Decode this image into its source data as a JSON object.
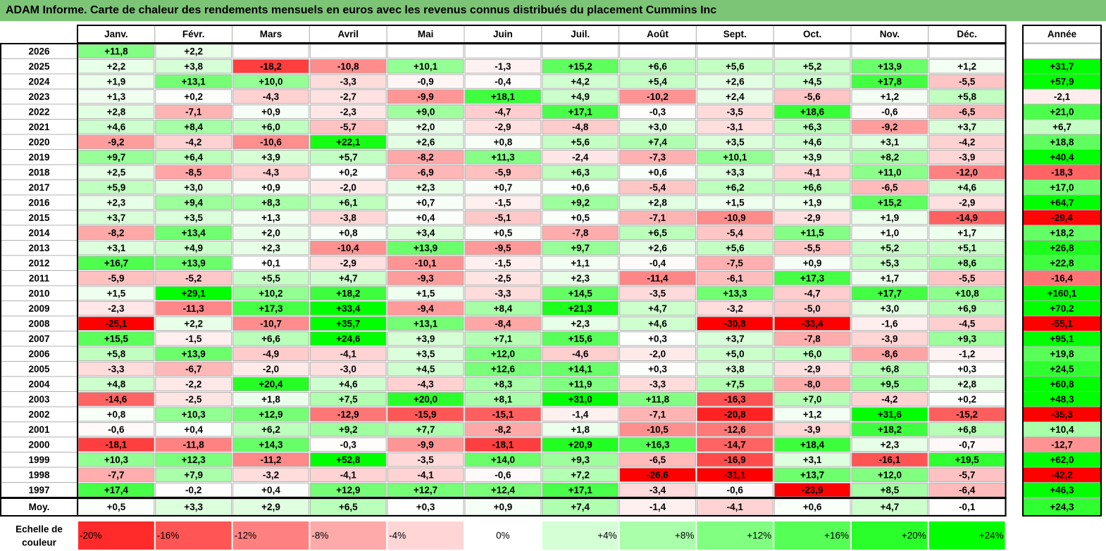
{
  "title": "ADAM Informe. Carte de chaleur des rendements mensuels en euros avec les revenus connus distribués du placement Cummins Inc",
  "chart_data": {
    "type": "heatmap",
    "title": "ADAM Informe. Carte de chaleur des rendements mensuels en euros avec les revenus connus distribués du placement Cummins Inc",
    "columns": [
      "Janv.",
      "Févr.",
      "Mars",
      "Avril",
      "Mai",
      "Juin",
      "Juil.",
      "Août",
      "Sept.",
      "Oct.",
      "Nov.",
      "Déc."
    ],
    "year_column_label": "Année",
    "rows": [
      {
        "label": "2026",
        "values": [
          "+11,8",
          "+2,2",
          null,
          null,
          null,
          null,
          null,
          null,
          null,
          null,
          null,
          null
        ],
        "year": null
      },
      {
        "label": "2025",
        "values": [
          "+2,2",
          "+3,8",
          "-18,2",
          "-10,8",
          "+10,1",
          "-1,3",
          "+15,2",
          "+6,6",
          "+5,6",
          "+5,2",
          "+13,9",
          "+1,2"
        ],
        "year": "+31,7"
      },
      {
        "label": "2024",
        "values": [
          "+1,9",
          "+13,1",
          "+10,0",
          "-3,3",
          "-0,9",
          "-0,4",
          "+4,2",
          "+5,4",
          "+2,6",
          "+4,5",
          "+17,8",
          "-5,5"
        ],
        "year": "+57,9"
      },
      {
        "label": "2023",
        "values": [
          "+1,3",
          "+0,2",
          "-4,3",
          "-2,7",
          "-9,9",
          "+18,1",
          "+4,9",
          "-10,2",
          "+2,4",
          "-5,6",
          "+1,2",
          "+5,8"
        ],
        "year": "-2,1"
      },
      {
        "label": "2022",
        "values": [
          "+2,8",
          "-7,1",
          "+0,9",
          "-2,3",
          "+9,0",
          "-4,7",
          "+17,1",
          "-0,3",
          "-3,5",
          "+18,6",
          "-0,6",
          "-6,5"
        ],
        "year": "+21,0"
      },
      {
        "label": "2021",
        "values": [
          "+4,6",
          "+8,4",
          "+6,0",
          "-5,7",
          "+2,0",
          "-2,9",
          "-4,8",
          "+3,0",
          "-3,1",
          "+6,3",
          "-9,2",
          "+3,7"
        ],
        "year": "+6,7"
      },
      {
        "label": "2020",
        "values": [
          "-9,2",
          "-4,2",
          "-10,6",
          "+22,1",
          "+2,6",
          "+0,8",
          "+5,6",
          "+7,4",
          "+3,5",
          "+4,6",
          "+3,1",
          "-4,2"
        ],
        "year": "+18,8"
      },
      {
        "label": "2019",
        "values": [
          "+9,7",
          "+6,4",
          "+3,9",
          "+5,7",
          "-8,2",
          "+11,3",
          "-2,4",
          "-7,3",
          "+10,1",
          "+3,9",
          "+8,2",
          "-3,9"
        ],
        "year": "+40,4"
      },
      {
        "label": "2018",
        "values": [
          "+2,5",
          "-8,5",
          "-4,3",
          "+0,2",
          "-6,9",
          "-5,9",
          "+6,3",
          "+0,6",
          "+3,3",
          "-4,1",
          "+11,0",
          "-12,0"
        ],
        "year": "-18,3"
      },
      {
        "label": "2017",
        "values": [
          "+5,9",
          "+3,0",
          "+0,9",
          "-2,0",
          "+2,3",
          "+0,7",
          "+0,6",
          "-5,4",
          "+6,2",
          "+6,6",
          "-6,5",
          "+4,6"
        ],
        "year": "+17,0"
      },
      {
        "label": "2016",
        "values": [
          "+2,3",
          "+9,4",
          "+8,3",
          "+6,1",
          "+0,7",
          "-1,5",
          "+9,2",
          "+2,8",
          "+1,5",
          "+1,9",
          "+15,2",
          "-2,9"
        ],
        "year": "+64,7"
      },
      {
        "label": "2015",
        "values": [
          "+3,7",
          "+3,5",
          "+1,3",
          "-3,8",
          "+0,4",
          "-5,1",
          "+0,5",
          "-7,1",
          "-10,9",
          "-2,9",
          "+1,9",
          "-14,9"
        ],
        "year": "-29,4"
      },
      {
        "label": "2014",
        "values": [
          "-8,2",
          "+13,4",
          "+2,0",
          "+0,8",
          "+3,4",
          "+0,5",
          "-7,8",
          "+6,5",
          "-5,4",
          "+11,5",
          "+1,0",
          "+1,7"
        ],
        "year": "+18,2"
      },
      {
        "label": "2013",
        "values": [
          "+3,1",
          "+4,9",
          "+2,3",
          "-10,4",
          "+13,9",
          "-9,5",
          "+9,7",
          "+2,6",
          "+5,6",
          "-5,5",
          "+5,2",
          "+5,1"
        ],
        "year": "+26,8"
      },
      {
        "label": "2012",
        "values": [
          "+16,7",
          "+13,9",
          "+0,1",
          "-2,9",
          "-10,1",
          "-1,5",
          "+1,1",
          "-0,4",
          "-7,5",
          "+0,9",
          "+5,3",
          "+8,6"
        ],
        "year": "+22,8"
      },
      {
        "label": "2011",
        "values": [
          "-5,9",
          "-5,2",
          "+5,5",
          "+4,7",
          "-9,3",
          "-2,5",
          "+2,3",
          "-11,4",
          "-6,1",
          "+17,3",
          "+1,7",
          "-5,5"
        ],
        "year": "-16,4"
      },
      {
        "label": "2010",
        "values": [
          "+1,5",
          "+29,1",
          "+10,2",
          "+18,2",
          "+1,5",
          "-3,3",
          "+14,5",
          "-3,5",
          "+13,3",
          "-4,7",
          "+17,7",
          "+10,8"
        ],
        "year": "+160,1"
      },
      {
        "label": "2009",
        "values": [
          "-2,3",
          "-11,3",
          "+17,3",
          "+33,4",
          "-9,4",
          "+8,4",
          "+21,3",
          "+4,7",
          "-3,2",
          "-5,0",
          "+3,0",
          "+6,9"
        ],
        "year": "+70,2"
      },
      {
        "label": "2008",
        "values": [
          "-25,1",
          "+2,2",
          "-10,7",
          "+35,7",
          "+13,1",
          "-8,4",
          "+2,3",
          "+4,6",
          "-30,8",
          "-33,4",
          "-1,6",
          "-4,5"
        ],
        "year": "-55,1"
      },
      {
        "label": "2007",
        "values": [
          "+15,5",
          "-1,5",
          "+6,6",
          "+24,6",
          "+3,9",
          "+7,1",
          "+15,6",
          "+0,3",
          "+3,7",
          "-7,8",
          "-3,9",
          "+9,3"
        ],
        "year": "+95,1"
      },
      {
        "label": "2006",
        "values": [
          "+5,8",
          "+13,9",
          "-4,9",
          "-4,1",
          "+3,5",
          "+12,0",
          "-4,6",
          "-2,0",
          "+5,0",
          "+6,0",
          "-8,6",
          "-1,2"
        ],
        "year": "+19,8"
      },
      {
        "label": "2005",
        "values": [
          "-3,3",
          "-6,7",
          "-2,0",
          "-3,0",
          "+4,5",
          "+12,6",
          "+14,1",
          "+0,3",
          "+3,8",
          "-2,9",
          "+6,8",
          "+0,3"
        ],
        "year": "+24,5"
      },
      {
        "label": "2004",
        "values": [
          "+4,8",
          "-2,2",
          "+20,4",
          "+4,6",
          "-4,3",
          "+8,3",
          "+11,9",
          "-3,3",
          "+7,5",
          "-8,0",
          "+9,5",
          "+2,8"
        ],
        "year": "+60,8"
      },
      {
        "label": "2003",
        "values": [
          "-14,6",
          "-2,5",
          "+1,8",
          "+7,5",
          "+20,0",
          "+8,1",
          "+31,0",
          "+11,8",
          "-16,3",
          "+7,0",
          "-4,2",
          "+0,2"
        ],
        "year": "+48,3"
      },
      {
        "label": "2002",
        "values": [
          "+0,8",
          "+10,3",
          "+12,9",
          "-12,9",
          "-15,9",
          "-15,1",
          "-1,4",
          "-7,1",
          "-20,8",
          "+1,2",
          "+31,6",
          "-15,2"
        ],
        "year": "-35,3"
      },
      {
        "label": "2001",
        "values": [
          "-0,6",
          "+0,4",
          "+6,2",
          "+9,2",
          "+7,7",
          "-8,2",
          "+1,8",
          "-10,5",
          "-12,6",
          "-3,9",
          "+18,2",
          "+6,8"
        ],
        "year": "+10,4"
      },
      {
        "label": "2000",
        "values": [
          "-18,1",
          "-11,8",
          "+14,3",
          "-0,3",
          "-9,9",
          "-18,1",
          "+20,9",
          "+16,3",
          "-14,7",
          "+18,4",
          "+2,3",
          "-0,7"
        ],
        "year": "-12,7"
      },
      {
        "label": "1999",
        "values": [
          "+10,3",
          "+12,3",
          "-11,2",
          "+52,8",
          "-3,5",
          "+14,0",
          "+9,3",
          "-6,5",
          "-16,9",
          "+3,1",
          "-16,1",
          "+19,5"
        ],
        "year": "+62,0"
      },
      {
        "label": "1998",
        "values": [
          "-7,7",
          "+7,9",
          "-3,2",
          "-4,1",
          "-4,1",
          "-0,6",
          "+7,2",
          "-26,6",
          "-31,1",
          "+13,7",
          "+12,0",
          "-5,7"
        ],
        "year": "-42,2"
      },
      {
        "label": "1997",
        "values": [
          "+17,4",
          "-0,2",
          "+0,4",
          "+12,9",
          "+12,7",
          "+12,4",
          "+17,1",
          "-3,4",
          "-0,6",
          "-23,9",
          "+8,5",
          "-6,4"
        ],
        "year": "+46,3"
      }
    ],
    "average": {
      "label": "Moy.",
      "values": [
        "+0,5",
        "+3,3",
        "+2,9",
        "+6,5",
        "+0,3",
        "+0,9",
        "+7,4",
        "-1,4",
        "-4,1",
        "+0,6",
        "+4,7",
        "-0,1"
      ],
      "year": "+24,3"
    },
    "scale": {
      "title_line1": "Echelle de",
      "title_line2": "couleur",
      "steps": [
        {
          "label": "-20%",
          "value": -20
        },
        {
          "label": "-16%",
          "value": -16
        },
        {
          "label": "-12%",
          "value": -12
        },
        {
          "label": "-8%",
          "value": -8
        },
        {
          "label": "-4%",
          "value": -4
        },
        {
          "label": "0%",
          "value": 0
        },
        {
          "label": "+4%",
          "value": 4
        },
        {
          "label": "+8%",
          "value": 8
        },
        {
          "label": "+12%",
          "value": 12
        },
        {
          "label": "+16%",
          "value": 16
        },
        {
          "label": "+20%",
          "value": 20
        },
        {
          "label": "+24%",
          "value": 24
        }
      ]
    },
    "colors": {
      "negative_max": "#ff0000",
      "neutral": "#ffffff",
      "positive_max": "#00ff00",
      "title_bar": "#7cc576",
      "grid": "#b0b0b0",
      "border": "#000000"
    }
  }
}
